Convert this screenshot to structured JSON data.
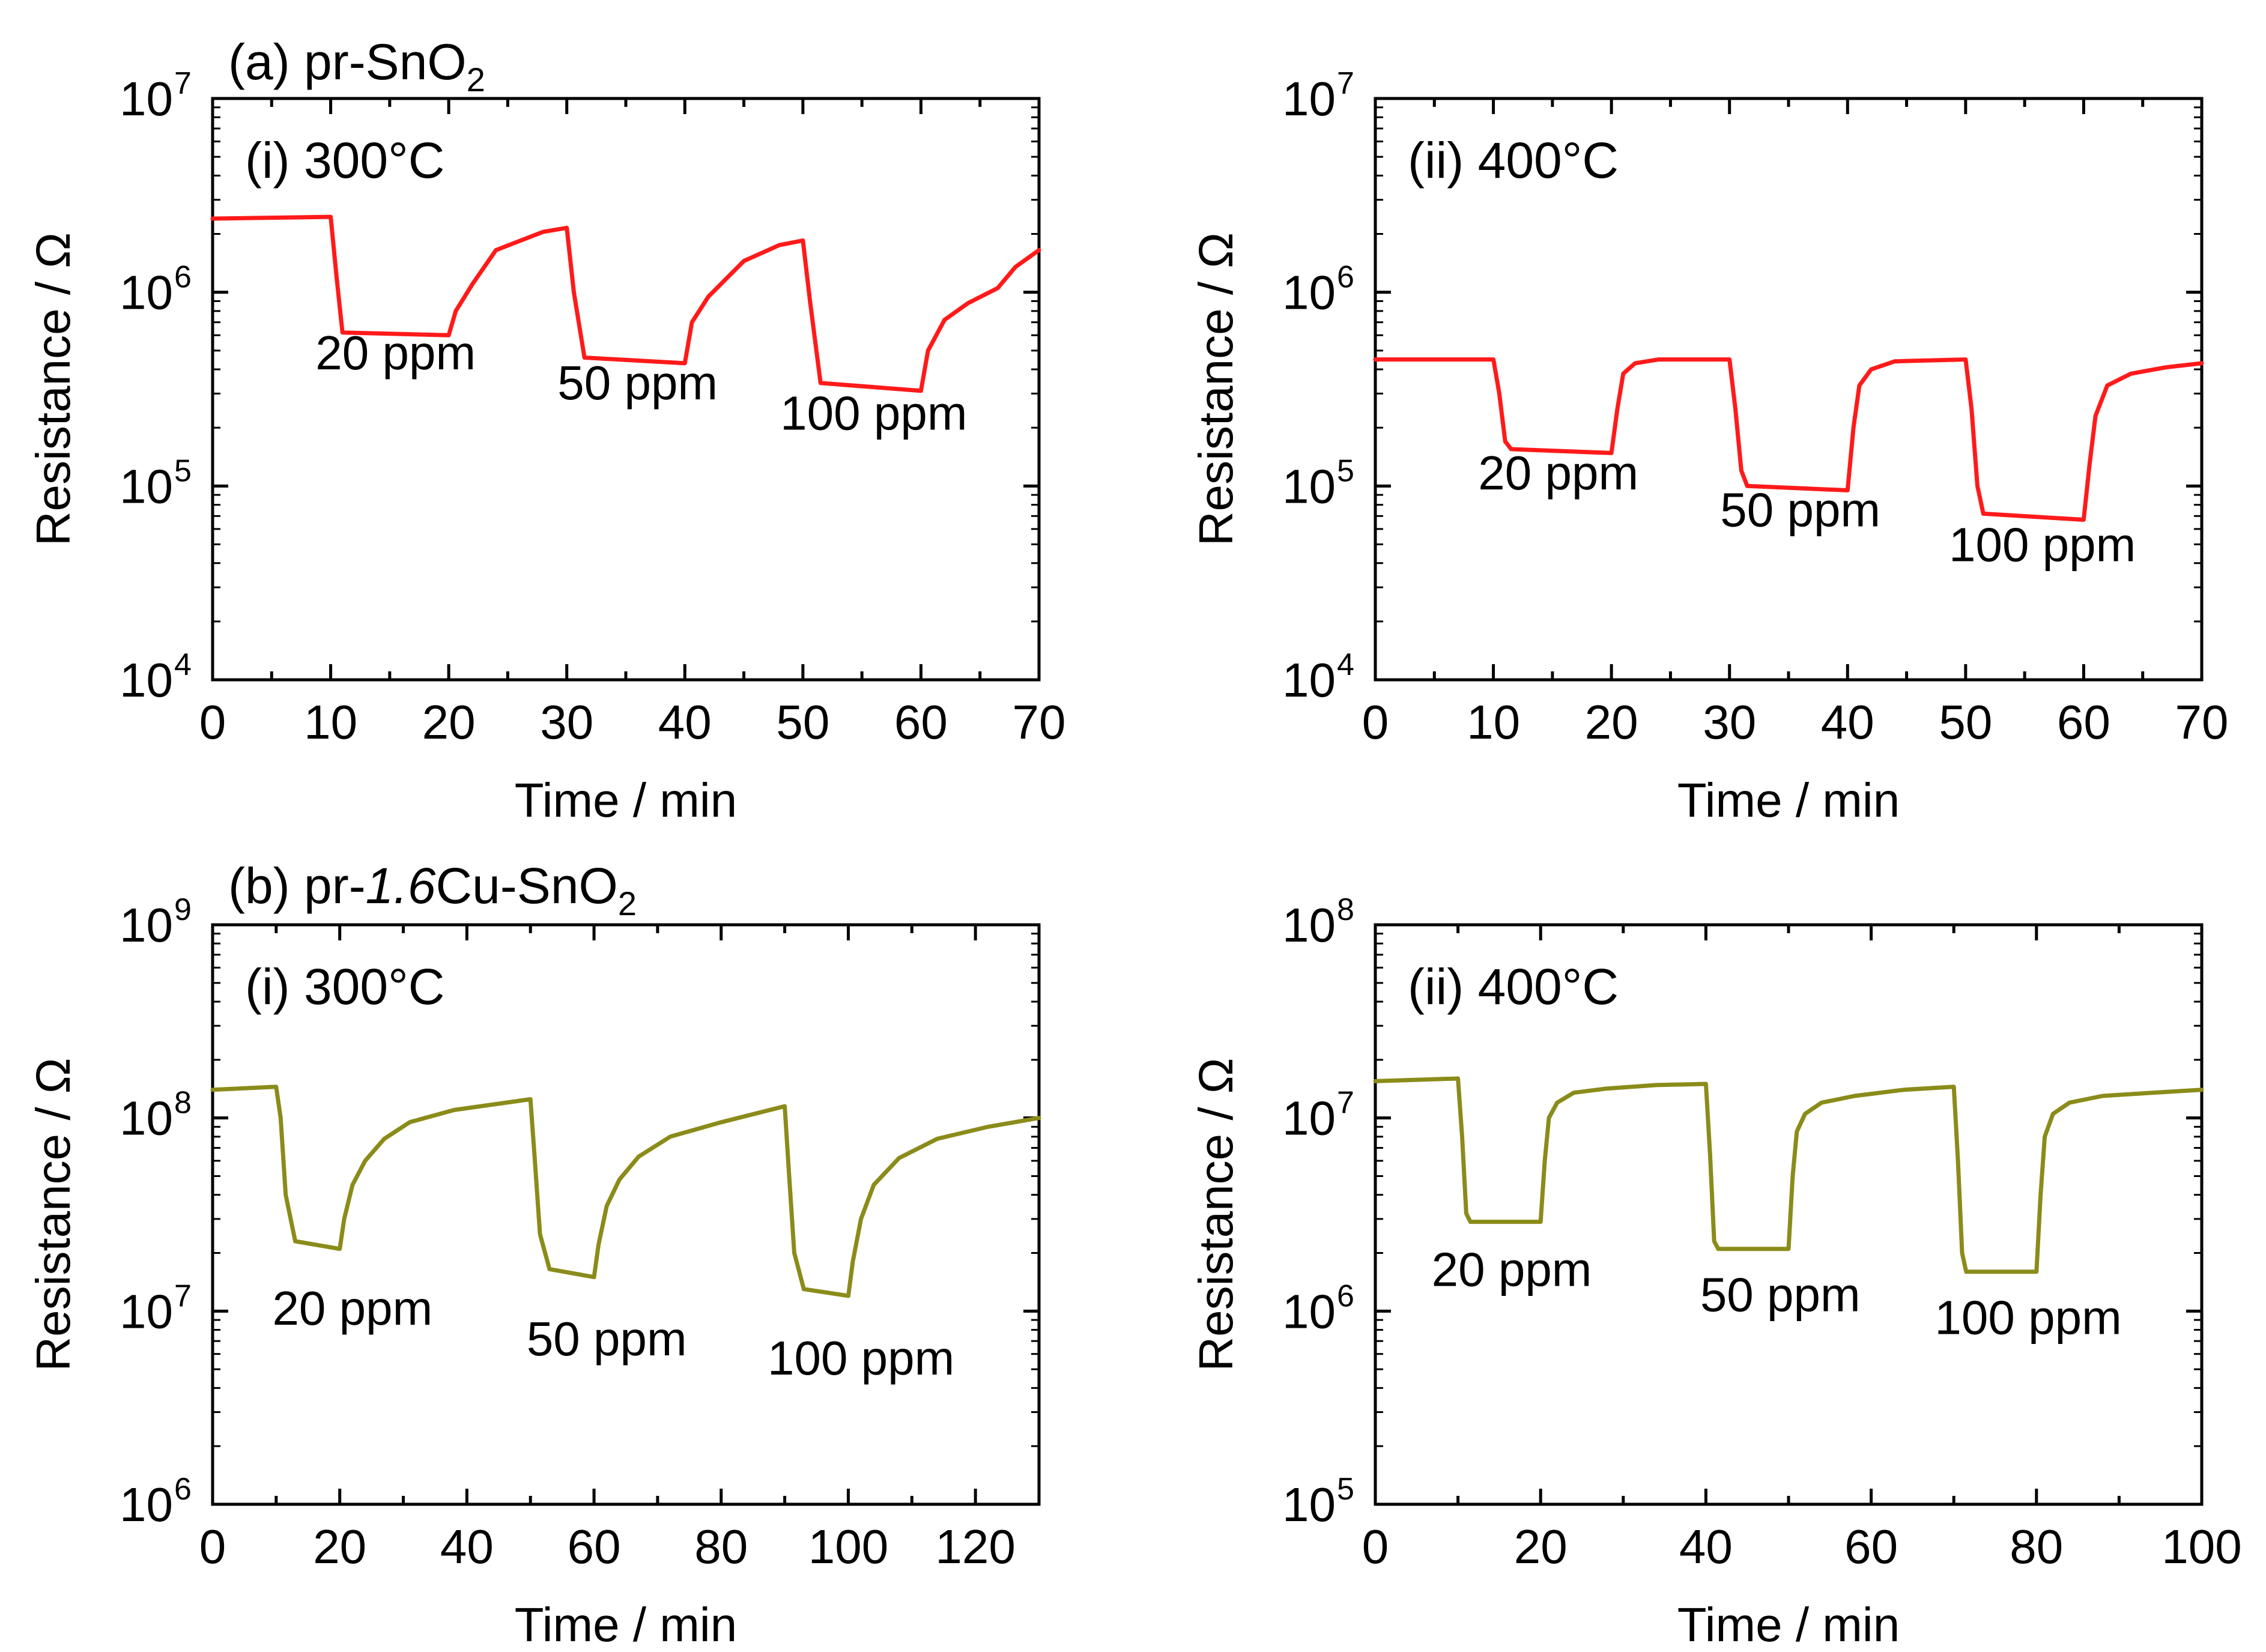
{
  "headings": [
    {
      "prefix": "(a) pr-",
      "italic": "",
      "suffix": "SnO",
      "sub": "2"
    },
    {
      "prefix": "(b) pr-",
      "italic": "1.6",
      "suffix": "Cu-SnO",
      "sub": "2"
    }
  ],
  "chart_data": [
    {
      "id": "a-i",
      "type": "line",
      "scale": "log",
      "inset_label": "(i) 300°C",
      "xlabel": "Time / min",
      "ylabel": "Resistance / Ω",
      "xlim": [
        0,
        70
      ],
      "xticks": [
        0,
        10,
        20,
        30,
        40,
        50,
        60,
        70
      ],
      "ylim_exp": [
        4,
        7
      ],
      "series_color": "#ff1a1a",
      "series": [
        {
          "name": "pr-SnO2 300°C",
          "x": [
            0,
            10,
            10.5,
            11,
            20,
            20.6,
            22,
            24,
            28,
            30,
            30.6,
            31.5,
            40,
            40.6,
            42,
            45,
            48,
            50,
            50.6,
            51.5,
            60,
            60.6,
            62,
            64,
            66.5,
            68,
            70
          ],
          "y": [
            2400000,
            2450000,
            1200000,
            620000,
            600000,
            800000,
            1100000,
            1650000,
            2050000,
            2150000,
            1000000,
            460000,
            430000,
            700000,
            950000,
            1450000,
            1750000,
            1850000,
            900000,
            340000,
            310000,
            500000,
            720000,
            880000,
            1050000,
            1350000,
            1650000
          ]
        }
      ],
      "annotations": [
        {
          "text": "20 ppm",
          "x": 15.5,
          "y": 400000
        },
        {
          "text": "50 ppm",
          "x": 36,
          "y": 280000
        },
        {
          "text": "100 ppm",
          "x": 56,
          "y": 195000
        }
      ]
    },
    {
      "id": "a-ii",
      "type": "line",
      "scale": "log",
      "inset_label": "(ii) 400°C",
      "xlabel": "Time / min",
      "ylabel": "Resistance / Ω",
      "xlim": [
        0,
        70
      ],
      "xticks": [
        0,
        10,
        20,
        30,
        40,
        50,
        60,
        70
      ],
      "ylim_exp": [
        4,
        7
      ],
      "series_color": "#ff1a1a",
      "series": [
        {
          "name": "pr-SnO2 400°C",
          "x": [
            0,
            10,
            10.5,
            11,
            11.5,
            20,
            20.5,
            21,
            22,
            24,
            30,
            30.5,
            31,
            31.5,
            40,
            40.5,
            41,
            42,
            44,
            50,
            50.5,
            51,
            51.5,
            60,
            60.5,
            61,
            62,
            64,
            67,
            70
          ],
          "y": [
            450000,
            450000,
            300000,
            170000,
            155000,
            148000,
            250000,
            380000,
            430000,
            450000,
            450000,
            250000,
            120000,
            100000,
            95000,
            200000,
            330000,
            400000,
            440000,
            450000,
            250000,
            100000,
            72000,
            67000,
            130000,
            230000,
            330000,
            380000,
            410000,
            430000
          ]
        }
      ],
      "annotations": [
        {
          "text": "20 ppm",
          "x": 15.5,
          "y": 96000
        },
        {
          "text": "50 ppm",
          "x": 36,
          "y": 62000
        },
        {
          "text": "100 ppm",
          "x": 56.5,
          "y": 41000
        }
      ]
    },
    {
      "id": "b-i",
      "type": "line",
      "scale": "log",
      "inset_label": "(i) 300°C",
      "xlabel": "Time / min",
      "ylabel": "Resistance / Ω",
      "xlim": [
        0,
        130
      ],
      "xticks": [
        0,
        20,
        40,
        60,
        80,
        100,
        120
      ],
      "ylim_exp": [
        6,
        9
      ],
      "series_color": "#8b8b1a",
      "series": [
        {
          "name": "pr-1.6Cu-SnO2 300°C",
          "x": [
            0,
            10,
            10.7,
            11.5,
            13,
            20,
            20.7,
            22,
            24,
            27,
            31,
            38,
            50,
            50.7,
            51.5,
            53,
            60,
            60.7,
            62,
            64,
            67,
            72,
            80,
            90,
            90.7,
            91.5,
            93,
            100,
            100.7,
            102,
            104,
            108,
            114,
            122,
            130
          ],
          "y": [
            140000000,
            145000000,
            100000000,
            40000000,
            23000000,
            21000000,
            30000000,
            45000000,
            60000000,
            78000000,
            95000000,
            110000000,
            125000000,
            60000000,
            25000000,
            16500000,
            15000000,
            22000000,
            35000000,
            48000000,
            63000000,
            80000000,
            95000000,
            115000000,
            50000000,
            20000000,
            13000000,
            12000000,
            18000000,
            30000000,
            45000000,
            62000000,
            78000000,
            90000000,
            100000000
          ]
        }
      ],
      "annotations": [
        {
          "text": "20 ppm",
          "x": 22,
          "y": 8500000
        },
        {
          "text": "50 ppm",
          "x": 62,
          "y": 5900000
        },
        {
          "text": "100 ppm",
          "x": 102,
          "y": 4700000
        }
      ]
    },
    {
      "id": "b-ii",
      "type": "line",
      "scale": "log",
      "inset_label": "(ii) 400°C",
      "xlabel": "Time / min",
      "ylabel": "Resistance / Ω",
      "xlim": [
        0,
        100
      ],
      "xticks": [
        0,
        20,
        40,
        60,
        80,
        100
      ],
      "ylim_exp": [
        5,
        8
      ],
      "series_color": "#8b8b1a",
      "series": [
        {
          "name": "pr-1.6Cu-SnO2 400°C",
          "x": [
            0,
            10,
            10.5,
            11,
            11.5,
            20,
            20.5,
            21,
            22,
            24,
            28,
            34,
            40,
            40.5,
            41,
            41.5,
            50,
            50.5,
            51,
            52,
            54,
            58,
            64,
            70,
            70.5,
            71,
            71.5,
            80,
            80.5,
            81,
            82,
            84,
            88,
            94,
            100
          ],
          "y": [
            15500000,
            16000000,
            8000000,
            3200000,
            2900000,
            2900000,
            6000000,
            10000000,
            12000000,
            13500000,
            14200000,
            14800000,
            15000000,
            6500000,
            2300000,
            2100000,
            2100000,
            5000000,
            8500000,
            10500000,
            12000000,
            13000000,
            14000000,
            14500000,
            6000000,
            2000000,
            1600000,
            1600000,
            4000000,
            8000000,
            10500000,
            12000000,
            13000000,
            13500000,
            14000000
          ]
        }
      ],
      "annotations": [
        {
          "text": "20 ppm",
          "x": 16.5,
          "y": 1350000
        },
        {
          "text": "50 ppm",
          "x": 49,
          "y": 1000000
        },
        {
          "text": "100 ppm",
          "x": 79,
          "y": 760000
        }
      ]
    }
  ]
}
